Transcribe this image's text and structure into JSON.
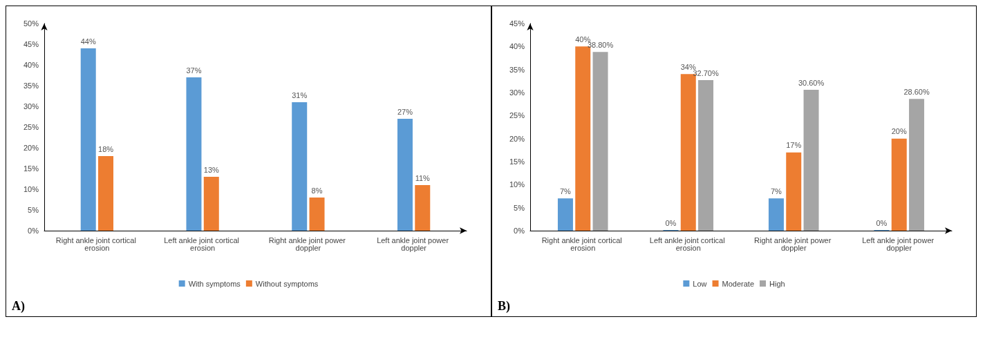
{
  "chart_data": [
    {
      "type": "bar",
      "categories": [
        "Right ankle joint cortical erosion",
        "Left ankle joint cortical erosion",
        "Right ankle joint power doppler",
        "Left ankle joint power doppler"
      ],
      "series": [
        {
          "name": "With symptoms",
          "color": "#5b9bd5",
          "values": [
            44,
            37,
            31,
            27
          ],
          "value_labels": [
            "44%",
            "37%",
            "31%",
            "27%"
          ]
        },
        {
          "name": "Without symptoms",
          "color": "#ed7d31",
          "values": [
            18,
            13,
            8,
            11
          ],
          "value_labels": [
            "18%",
            "13%",
            "8%",
            "11%"
          ]
        }
      ],
      "ylim": [
        0,
        50
      ],
      "yticks": [
        {
          "value": 0,
          "label": "0%"
        },
        {
          "value": 5,
          "label": "5%"
        },
        {
          "value": 10,
          "label": "10%"
        },
        {
          "value": 15,
          "label": "15%"
        },
        {
          "value": 20,
          "label": "20%"
        },
        {
          "value": 25,
          "label": "25%"
        },
        {
          "value": 30,
          "label": "30%"
        },
        {
          "value": 35,
          "label": "35%"
        },
        {
          "value": 40,
          "label": "40%"
        },
        {
          "value": 45,
          "label": "45%"
        },
        {
          "value": 50,
          "label": "50%"
        }
      ],
      "grid": false,
      "legend": "bottom",
      "annotations": [
        "A)"
      ]
    },
    {
      "type": "bar",
      "categories": [
        "Right ankle joint cortical erosion",
        "Left ankle joint cortical erosion",
        "Right ankle joint power doppler",
        "Left ankle joint power doppler"
      ],
      "series": [
        {
          "name": "Low",
          "color": "#5b9bd5",
          "values": [
            7,
            0,
            7,
            0
          ],
          "value_labels": [
            "7%",
            "0%",
            "7%",
            "0%"
          ]
        },
        {
          "name": "Moderate",
          "color": "#ed7d31",
          "values": [
            40,
            34,
            17,
            20
          ],
          "value_labels": [
            "40%",
            "34%",
            "17%",
            "20%"
          ]
        },
        {
          "name": "High",
          "color": "#a5a5a5",
          "values": [
            38.8,
            32.7,
            30.6,
            28.6
          ],
          "value_labels": [
            "38.80%",
            "32.70%",
            "30.60%",
            "28.60%"
          ]
        }
      ],
      "ylim": [
        0,
        45
      ],
      "yticks": [
        {
          "value": 0,
          "label": "0%"
        },
        {
          "value": 5,
          "label": "5%"
        },
        {
          "value": 10,
          "label": "10%"
        },
        {
          "value": 15,
          "label": "15%"
        },
        {
          "value": 20,
          "label": "20%"
        },
        {
          "value": 25,
          "label": "25%"
        },
        {
          "value": 30,
          "label": "30%"
        },
        {
          "value": 35,
          "label": "35%"
        },
        {
          "value": 40,
          "label": "40%"
        },
        {
          "value": 45,
          "label": "45%"
        }
      ],
      "grid": false,
      "legend": "bottom",
      "annotations": [
        "B)"
      ]
    }
  ]
}
